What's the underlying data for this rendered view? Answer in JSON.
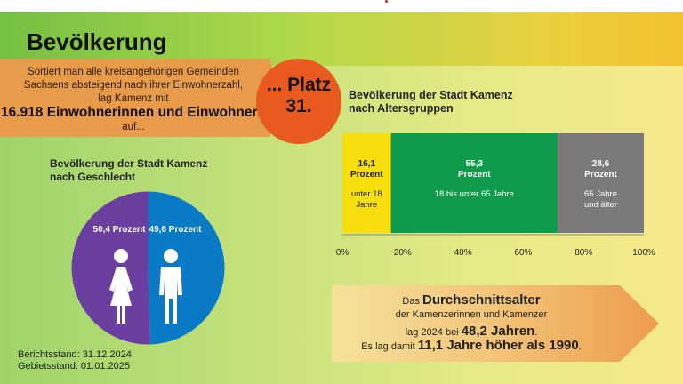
{
  "page": {
    "title": "Bevölkerung"
  },
  "ranking": {
    "line1": "Sortiert man alle kreisangehörigen Gemeinden",
    "line2": "Sachsens absteigend nach ihrer Einwohnerzahl,",
    "line3": "lag Kamenz mit",
    "population": "16.918 Einwohnerinnen und Einwohnern",
    "line4": "auf...",
    "place_line1": "... Platz",
    "place_line2": "31."
  },
  "colors": {
    "female": "#6b3fa0",
    "male": "#0a7ac6",
    "u18": "#f6df0c",
    "mid": "#0f9a4c",
    "senior": "#7a7a7a"
  },
  "chart_data": [
    {
      "type": "pie",
      "title": "Bevölkerung der Stadt Kamenz nach Geschlecht",
      "slices": [
        {
          "name": "weiblich",
          "value": 50.4,
          "label": "50,4 Prozent",
          "icon": "female-figure-icon"
        },
        {
          "name": "männlich",
          "value": 49.6,
          "label": "49,6 Prozent",
          "icon": "male-figure-icon"
        }
      ]
    },
    {
      "type": "bar",
      "orientation": "horizontal-stacked",
      "title": "Bevölkerung der Stadt Kamenz nach Altersgruppen",
      "xlim": [
        0,
        100
      ],
      "ticks": [
        "0%",
        "20%",
        "40%",
        "60%",
        "80%",
        "100%"
      ],
      "segments": [
        {
          "value": 16.1,
          "value_label": "16,1",
          "unit": "Prozent",
          "group_line1": "unter 18",
          "group_line2": "Jahre"
        },
        {
          "value": 55.3,
          "value_label": "55,3",
          "unit": "Prozent",
          "group_line1": "18 bis unter 65 Jahre",
          "group_line2": ""
        },
        {
          "value": 28.6,
          "value_label": "28,6",
          "unit": "Prozent",
          "group_line1": "65 Jahre",
          "group_line2": "und älter"
        }
      ]
    }
  ],
  "average_age": {
    "l1_pre": "Das ",
    "l1_bold": "Durchschnittsalter",
    "l2": "der Kamenzerinnen und Kamenzer",
    "l3_pre": "lag 2024 bei ",
    "l3_bold": "48,2 Jahren",
    "l3_post": ".",
    "l4_pre": "Es lag damit ",
    "l4_bold": "11,1 Jahre höher als 1990",
    "l4_post": "."
  },
  "footer": {
    "berichtsstand": "Berichtsstand: 31.12.2024",
    "gebietsstand": "Gebietsstand: 01.01.2025"
  }
}
